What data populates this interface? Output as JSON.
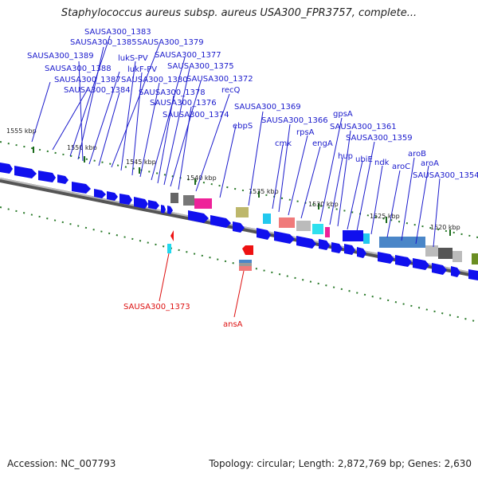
{
  "title": "Staphylococcus aureus subsp. aureus USA300_FPR3757, complete...",
  "footer": {
    "accession": "Accession: NC_007793",
    "topology": "Topology: circular; Length: 2,872,769 bp; Genes: 2,630"
  },
  "scale_ticks": [
    "1555 kbp",
    "1550 kbp",
    "1545 kbp",
    "1540 kbp",
    "1535 kbp",
    "1530 kbp",
    "1525 kbp",
    "1520 kbp"
  ],
  "forward_gene_labels": [
    "SAUSA300_1383",
    "SAUSA300_1385",
    "SAUSA300_1379",
    "SAUSA300_1389",
    "lukS-PV",
    "SAUSA300_1377",
    "SAUSA300_1388",
    "lukF-PV",
    "SAUSA300_1375",
    "SAUSA300_1387",
    "SAUSA300_1380",
    "SAUSA300_1372",
    "SAUSA300_1384",
    "SAUSA300_1378",
    "recQ",
    "SAUSA300_1376",
    "SAUSA300_1369",
    "SAUSA300_1374",
    "SAUSA300_1366",
    "gpsA",
    "ebpS",
    "SAUSA300_1361",
    "rpsA",
    "cmk",
    "engA",
    "SAUSA300_1359",
    "hup",
    "ubiE",
    "aroB",
    "ndk",
    "aroC",
    "aroA",
    "SAUSA300_1354"
  ],
  "reverse_gene_labels": [
    "SAUSA300_1373",
    "ansA"
  ],
  "colors": {
    "forward_label": "#1a1acc",
    "reverse_label": "#dd1111",
    "gene_blue": "#1010ee",
    "tick_green": "#2a7a2a",
    "backbone": "#7a7a7a"
  }
}
